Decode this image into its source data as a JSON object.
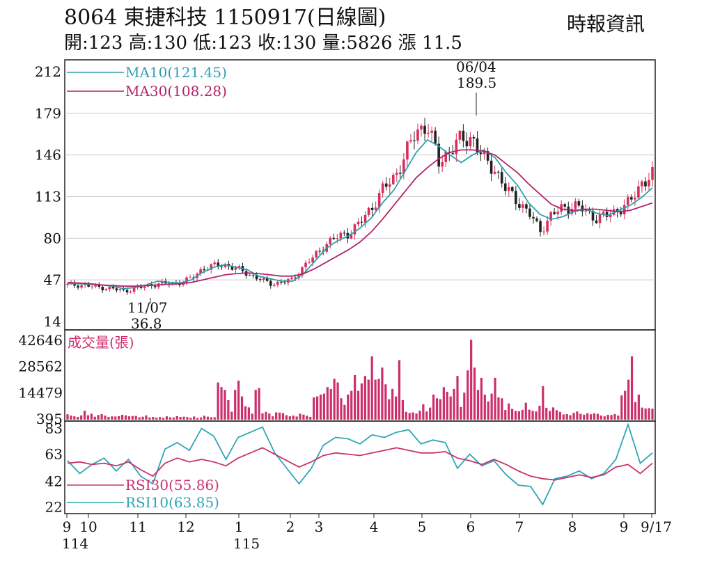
{
  "header": {
    "title": "8064  東捷科技 1150917(日線圖)",
    "quote": "開:123 高:130 低:123 收:130 量:5826 漲 11.5",
    "source": "時報資訊"
  },
  "colors": {
    "ma10": "#2f9fae",
    "ma30": "#b2236a",
    "up": "#d6305a",
    "down": "#222222",
    "volume": "#cc2f6b",
    "rsi10": "#2fa5b4",
    "rsi30": "#c8326e",
    "grid": "#cccccc"
  },
  "chart_data": [
    {
      "type": "line",
      "panel": "price",
      "y_ticks": [
        "212",
        "179",
        "146",
        "113",
        "80",
        "47",
        "14"
      ],
      "ylim": [
        14,
        212
      ],
      "series": [
        {
          "name": "MA10(121.45)",
          "color": "ma10",
          "values": [
            44,
            44,
            43.5,
            43,
            42,
            40,
            41,
            43,
            46,
            45,
            44.5,
            47,
            53,
            57,
            59,
            57,
            55,
            50,
            48,
            46,
            46,
            52,
            62,
            72,
            78,
            82,
            88,
            96,
            108,
            118,
            133,
            148,
            158,
            153,
            146,
            140,
            146,
            150,
            144,
            132,
            122,
            108,
            99,
            95,
            97,
            101,
            103,
            100,
            98,
            102,
            106,
            112,
            120
          ]
        },
        {
          "name": "MA30(108.28)",
          "color": "ma30",
          "values": [
            45,
            44.5,
            44,
            43,
            42.5,
            42,
            42,
            42.5,
            43,
            43.5,
            44,
            45,
            47,
            49,
            51,
            52,
            52.5,
            52,
            51,
            50,
            50,
            52,
            56,
            61,
            66,
            71,
            77,
            85,
            95,
            106,
            117,
            128,
            136,
            143,
            148,
            150,
            150,
            149,
            146,
            139,
            132,
            123,
            115,
            107,
            103,
            102,
            103,
            103,
            102,
            101,
            102,
            105,
            108
          ]
        },
        {
          "name": "close",
          "values": [
            43,
            43,
            42,
            41,
            40,
            38,
            40,
            42,
            44,
            44,
            45,
            48,
            56,
            58,
            59,
            56,
            52,
            48,
            44,
            45,
            47,
            58,
            66,
            76,
            81,
            84,
            92,
            104,
            118,
            128,
            145,
            165,
            170,
            140,
            150,
            158,
            160,
            142,
            135,
            118,
            110,
            100,
            86,
            98,
            104,
            106,
            102,
            96,
            98,
            103,
            108,
            124,
            130
          ]
        },
        {
          "name": "annotation-high",
          "values": [
            189.5
          ]
        },
        {
          "name": "annotation-low",
          "values": [
            36.8
          ]
        }
      ],
      "annotations": [
        {
          "date": "06/04",
          "value": "189.5"
        },
        {
          "date": "11/07",
          "value": "36.8"
        }
      ]
    },
    {
      "type": "bar",
      "panel": "volume",
      "title": "成交量(張)",
      "y_ticks": [
        "42646",
        "28562",
        "14479",
        "395"
      ],
      "ylim": [
        395,
        42646
      ],
      "values": [
        2900,
        2200,
        1800,
        1500,
        2300,
        4800,
        2400,
        3200,
        1600,
        2500,
        3000,
        2200,
        1500,
        1800,
        1700,
        1900,
        2600,
        2300,
        1800,
        2000,
        2000,
        1300,
        1600,
        2300,
        1200,
        1500,
        1100,
        1400,
        1000,
        1800,
        1300,
        1200,
        1900,
        1500,
        1600,
        1400,
        1000,
        1700,
        900,
        1200,
        2100,
        1600,
        1300,
        1300,
        20000,
        17500,
        16000,
        10500,
        4300,
        16000,
        21000,
        12500,
        7200,
        6600,
        3200,
        16000,
        17000,
        3400,
        4200,
        3300,
        1800,
        3900,
        3800,
        3500,
        2400,
        1800,
        2200,
        1700,
        3200,
        2700,
        2100,
        1500,
        12000,
        12500,
        13500,
        14000,
        17500,
        16500,
        22000,
        20000,
        11500,
        7900,
        13500,
        15500,
        24000,
        15500,
        19500,
        23500,
        21500,
        34000,
        21500,
        22000,
        28000,
        19000,
        11000,
        16500,
        12500,
        32000,
        10500,
        4200,
        3600,
        3900,
        3300,
        4800,
        8300,
        4400,
        6500,
        13500,
        11500,
        11000,
        17500,
        15000,
        12500,
        16500,
        23500,
        6800,
        14500,
        26500,
        43000,
        28000,
        16000,
        22500,
        13500,
        9800,
        14000,
        22500,
        12000,
        11500,
        5200,
        8700,
        5800,
        4700,
        4500,
        5300,
        9100,
        5400,
        4800,
        4400,
        7500,
        18000,
        6400,
        4700,
        6600,
        5100,
        4200,
        2800,
        3000,
        2400,
        3700,
        4400,
        3100,
        2700,
        3400,
        2900,
        3400,
        3100,
        2200,
        1800,
        2600,
        2500,
        3000,
        2200,
        13000,
        15500,
        21500,
        34000,
        9500,
        13500,
        6500,
        6000,
        6200,
        5900
      ]
    },
    {
      "type": "line",
      "panel": "rsi",
      "y_ticks": [
        "83",
        "63",
        "42",
        "22"
      ],
      "ylim": [
        18,
        86
      ],
      "series": [
        {
          "name": "RSI30(55.86)",
          "color": "rsi30",
          "values": [
            56,
            57,
            55,
            56,
            54,
            57,
            51,
            46,
            56,
            60,
            57,
            59,
            57,
            54,
            60,
            64,
            68,
            63,
            58,
            53,
            57,
            62,
            64,
            63,
            62,
            64,
            66,
            68,
            66,
            64,
            64,
            65,
            60,
            58,
            55,
            59,
            55,
            50,
            46,
            44,
            43,
            45,
            47,
            45,
            47,
            53,
            55,
            48,
            56
          ]
        },
        {
          "name": "RSI10(63.85)",
          "color": "rsi10",
          "values": [
            58,
            48,
            55,
            60,
            50,
            59,
            46,
            40,
            67,
            72,
            66,
            83,
            77,
            59,
            76,
            80,
            84,
            64,
            52,
            40,
            52,
            70,
            76,
            75,
            71,
            78,
            76,
            80,
            82,
            71,
            74,
            72,
            52,
            63,
            54,
            58,
            47,
            39,
            38,
            24,
            44,
            46,
            50,
            44,
            48,
            59,
            86,
            56,
            64
          ]
        }
      ]
    }
  ],
  "x_axis": {
    "month_labels": [
      "9",
      "10",
      "11",
      "12",
      "1",
      "2",
      "3",
      "4",
      "5",
      "6",
      "7",
      "8",
      "9",
      "9/17"
    ],
    "year_labels": [
      "114",
      "115"
    ]
  }
}
